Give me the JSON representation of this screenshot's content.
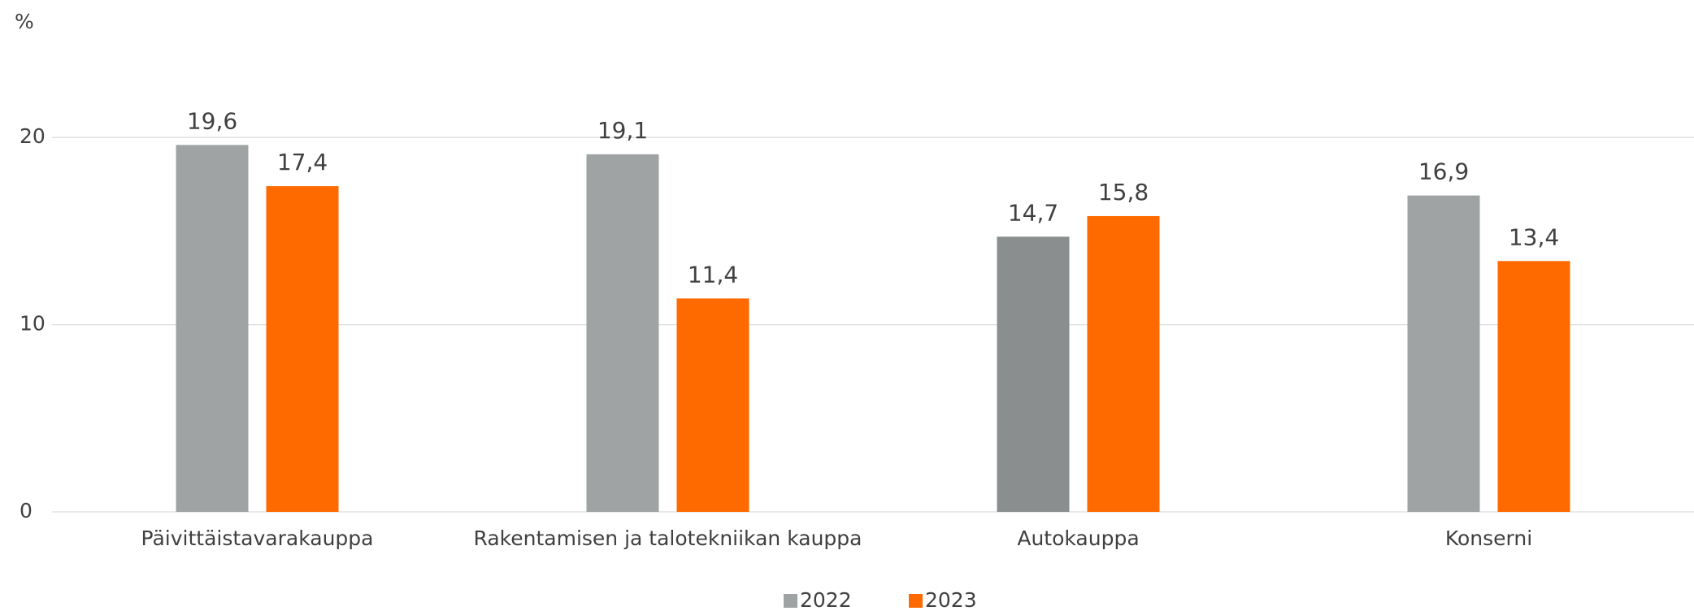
{
  "chart_data": {
    "type": "bar",
    "y_label": "%",
    "categories": [
      "Päivittäistavarakauppa",
      "Rakentamisen ja talotekniikan kauppa",
      "Autokauppa",
      "Konserni"
    ],
    "series": [
      {
        "name": "2022",
        "color": "#a0a3a3",
        "colors": [
          "#a0a3a3",
          "#a0a3a3",
          "#8a8e8e",
          "#a0a3a3"
        ],
        "values": [
          19.6,
          19.1,
          14.7,
          16.9
        ],
        "value_labels": [
          "19,6",
          "19,1",
          "14,7",
          "16,9"
        ]
      },
      {
        "name": "2023",
        "color": "#ff6a00",
        "values": [
          17.4,
          11.4,
          15.8,
          13.4
        ],
        "value_labels": [
          "17,4",
          "11,4",
          "15,8",
          "13,4"
        ]
      }
    ],
    "ylim": [
      0,
      25
    ],
    "yticks": [
      0,
      10,
      20
    ],
    "grid": true,
    "legend": "bottom"
  }
}
